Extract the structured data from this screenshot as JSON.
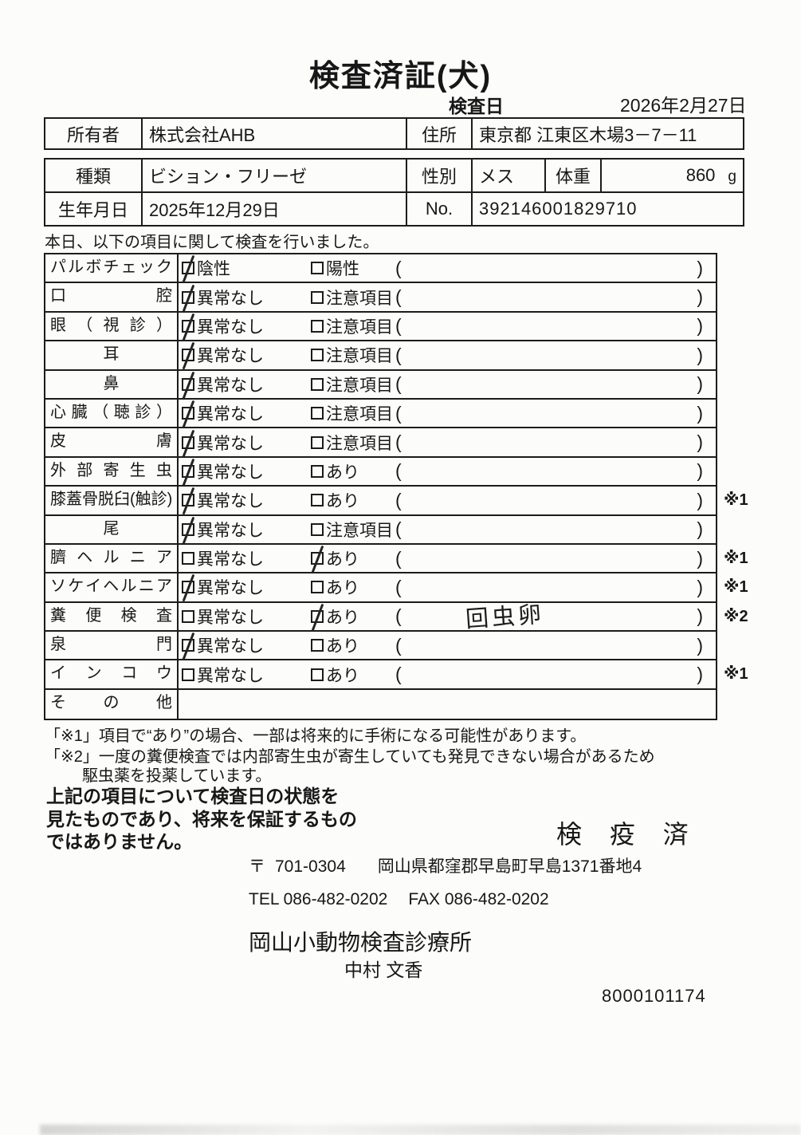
{
  "page": {
    "title": "検査済証(犬)",
    "inspection_date_label": "検査日",
    "inspection_date": "2026年2月27日",
    "quarantine_stamp": "検 疫 済",
    "serial": "8000101174"
  },
  "owner": {
    "owner_label": "所有者",
    "owner_value": "株式会社AHB",
    "address_label": "住所",
    "address_value": "東京都 江東区木場3－7－11"
  },
  "animal": {
    "breed_label": "種類",
    "breed_value": "ビション・フリーゼ",
    "sex_label": "性別",
    "sex_value": "メス",
    "weight_label": "体重",
    "weight_value": "860",
    "weight_unit": "g",
    "birth_label": "生年月日",
    "birth_value": "2025年12月29日",
    "no_label": "No.",
    "no_value": "392146001829710"
  },
  "intro_text": "本日、以下の項目に関して検査を行いました。",
  "checklist": {
    "paren_open": "(",
    "paren_close": ")",
    "rows": [
      {
        "label": "パルボチェック",
        "align": "justify",
        "opt1": "陰性",
        "opt2": "陽性",
        "checked": "opt1",
        "paren_text": "",
        "note": ""
      },
      {
        "label": "口腔",
        "align": "justify",
        "opt1": "異常なし",
        "opt2": "注意項目",
        "checked": "opt1",
        "paren_text": "",
        "note": ""
      },
      {
        "label": "眼（視診）",
        "align": "justify",
        "opt1": "異常なし",
        "opt2": "注意項目",
        "checked": "opt1",
        "paren_text": "",
        "note": ""
      },
      {
        "label": "耳",
        "align": "center",
        "opt1": "異常なし",
        "opt2": "注意項目",
        "checked": "opt1",
        "paren_text": "",
        "note": ""
      },
      {
        "label": "鼻",
        "align": "center",
        "opt1": "異常なし",
        "opt2": "注意項目",
        "checked": "opt1",
        "paren_text": "",
        "note": ""
      },
      {
        "label": "心臓（聴診）",
        "align": "justify",
        "opt1": "異常なし",
        "opt2": "注意項目",
        "checked": "opt1",
        "paren_text": "",
        "note": ""
      },
      {
        "label": "皮膚",
        "align": "justify",
        "opt1": "異常なし",
        "opt2": "注意項目",
        "checked": "opt1",
        "paren_text": "",
        "note": ""
      },
      {
        "label": "外部寄生虫",
        "align": "justify",
        "opt1": "異常なし",
        "opt2": "あり",
        "checked": "opt1",
        "paren_text": "",
        "note": ""
      },
      {
        "label": "膝蓋骨脱臼(触診)",
        "align": "justify",
        "opt1": "異常なし",
        "opt2": "あり",
        "checked": "opt1",
        "paren_text": "",
        "note": "※1"
      },
      {
        "label": "尾",
        "align": "center",
        "opt1": "異常なし",
        "opt2": "注意項目",
        "checked": "opt1",
        "paren_text": "",
        "note": ""
      },
      {
        "label": "臍ヘルニア",
        "align": "justify",
        "opt1": "異常なし",
        "opt2": "あり",
        "checked": "opt2",
        "paren_text": "",
        "note": "※1"
      },
      {
        "label": "ソケイヘルニア",
        "align": "justify",
        "opt1": "異常なし",
        "opt2": "あり",
        "checked": "opt1",
        "paren_text": "",
        "note": "※1"
      },
      {
        "label": "糞便検査",
        "align": "justify",
        "opt1": "異常なし",
        "opt2": "あり",
        "checked": "opt2",
        "paren_text": "回虫卵",
        "note": "※2"
      },
      {
        "label": "泉門",
        "align": "justify",
        "opt1": "異常なし",
        "opt2": "あり",
        "checked": "opt1",
        "paren_text": "",
        "note": ""
      },
      {
        "label": "インコウ",
        "align": "justify",
        "opt1": "異常なし",
        "opt2": "あり",
        "checked": "none",
        "paren_text": "",
        "note": "※1"
      },
      {
        "label": "その他",
        "align": "justify",
        "opt1": "",
        "opt2": "",
        "checked": "none",
        "paren_text": "",
        "note": ""
      }
    ]
  },
  "footnotes": {
    "note1": "「※1」項目で“あり”の場合、一部は将来的に手術になる可能性があります。",
    "note2_line1": "「※2」一度の糞便検査では内部寄生虫が寄生していても発見できない場合があるため",
    "note2_line2": "駆虫薬を投薬しています。"
  },
  "disclaimer": {
    "line1": "上記の項目について検査日の状態を",
    "line2": "見たものであり、将来を保証するもの",
    "line3": "ではありません。"
  },
  "clinic": {
    "postal_mark": "〒",
    "postal_code": "701-0304",
    "address": "岡山県都窪郡早島町早島1371番地4",
    "tel": "TEL 086-482-0202",
    "fax": "FAX 086-482-0202",
    "name": "岡山小動物検査診療所",
    "veterinarian": "中村 文香"
  }
}
